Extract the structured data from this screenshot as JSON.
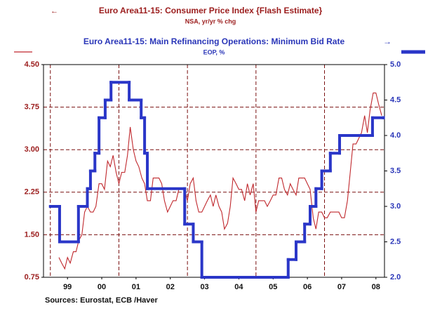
{
  "chart_data": {
    "type": "line",
    "title": "Euro Area11-15: Consumer Price Index {Flash Estimate}",
    "subtitle": "NSA, yr/yr % chg",
    "title2": "Euro Area11-15: Main Refinancing Operations: Minimum Bid Rate",
    "subtitle2": "EOP, %",
    "source": "Sources:  Eurostat, ECB /Haver",
    "xlim": [
      1998.8,
      2008.75
    ],
    "xticks": [
      {
        "value": 1999.5,
        "label": "99"
      },
      {
        "value": 2000.5,
        "label": "00"
      },
      {
        "value": 2001.5,
        "label": "01"
      },
      {
        "value": 2002.5,
        "label": "02"
      },
      {
        "value": 2003.5,
        "label": "03"
      },
      {
        "value": 2004.5,
        "label": "04"
      },
      {
        "value": 2005.5,
        "label": "05"
      },
      {
        "value": 2006.5,
        "label": "06"
      },
      {
        "value": 2007.5,
        "label": "07"
      },
      {
        "value": 2008.5,
        "label": "08"
      }
    ],
    "xgrid": [
      1999,
      2001,
      2003,
      2005,
      2007
    ],
    "ylim": [
      0.75,
      4.5
    ],
    "yticks": [
      {
        "value": 0.75,
        "label": "0.75"
      },
      {
        "value": 1.5,
        "label": "1.50"
      },
      {
        "value": 2.25,
        "label": "2.25"
      },
      {
        "value": 3,
        "label": "3.00"
      },
      {
        "value": 3.75,
        "label": "3.75"
      },
      {
        "value": 4.5,
        "label": "4.50"
      }
    ],
    "y2lim": [
      2,
      5
    ],
    "y2ticks": [
      {
        "value": 2,
        "label": "2.0"
      },
      {
        "value": 2.5,
        "label": "2.5"
      },
      {
        "value": 3,
        "label": "3.0"
      },
      {
        "value": 3.5,
        "label": "3.5"
      },
      {
        "value": 4,
        "label": "4.0"
      },
      {
        "value": 4.5,
        "label": "4.5"
      },
      {
        "value": 5,
        "label": "5.0"
      }
    ],
    "grid": true,
    "series": [
      {
        "name": "Euro Area11-15: Consumer Price Index {Flash Estimate}",
        "color": "#c0282d",
        "axis": "y",
        "x": [
          1999.25,
          1999.33,
          1999.42,
          1999.5,
          1999.58,
          1999.67,
          1999.75,
          1999.83,
          1999.92,
          2000.0,
          2000.08,
          2000.17,
          2000.25,
          2000.33,
          2000.42,
          2000.5,
          2000.58,
          2000.67,
          2000.75,
          2000.83,
          2000.92,
          2001.0,
          2001.08,
          2001.17,
          2001.25,
          2001.33,
          2001.42,
          2001.5,
          2001.58,
          2001.67,
          2001.75,
          2001.83,
          2001.92,
          2002.0,
          2002.08,
          2002.17,
          2002.25,
          2002.33,
          2002.42,
          2002.5,
          2002.58,
          2002.67,
          2002.75,
          2002.83,
          2002.92,
          2003.0,
          2003.08,
          2003.17,
          2003.25,
          2003.33,
          2003.42,
          2003.5,
          2003.58,
          2003.67,
          2003.75,
          2003.83,
          2003.92,
          2004.0,
          2004.08,
          2004.17,
          2004.25,
          2004.33,
          2004.42,
          2004.5,
          2004.58,
          2004.67,
          2004.75,
          2004.83,
          2004.92,
          2005.0,
          2005.08,
          2005.17,
          2005.25,
          2005.33,
          2005.42,
          2005.5,
          2005.58,
          2005.67,
          2005.75,
          2005.83,
          2005.92,
          2006.0,
          2006.08,
          2006.17,
          2006.25,
          2006.33,
          2006.42,
          2006.5,
          2006.58,
          2006.67,
          2006.75,
          2006.83,
          2006.92,
          2007.0,
          2007.08,
          2007.17,
          2007.25,
          2007.33,
          2007.42,
          2007.5,
          2007.58,
          2007.67,
          2007.75,
          2007.83,
          2007.92,
          2008.0,
          2008.08,
          2008.17,
          2008.25,
          2008.33,
          2008.42,
          2008.5,
          2008.58,
          2008.67
        ],
        "values": [
          1.1,
          1.0,
          0.9,
          1.1,
          1.0,
          1.2,
          1.2,
          1.4,
          1.5,
          1.9,
          2.0,
          1.9,
          1.9,
          2.0,
          2.4,
          2.4,
          2.3,
          2.8,
          2.7,
          2.9,
          2.6,
          2.4,
          2.6,
          2.6,
          2.9,
          3.4,
          3.0,
          2.8,
          2.7,
          2.5,
          2.4,
          2.1,
          2.1,
          2.5,
          2.5,
          2.5,
          2.4,
          2.1,
          1.9,
          2.0,
          2.1,
          2.1,
          2.3,
          2.3,
          2.3,
          2.1,
          2.4,
          2.5,
          2.1,
          1.9,
          1.9,
          2.0,
          2.1,
          2.2,
          2.0,
          2.2,
          2.0,
          1.9,
          1.6,
          1.7,
          2.0,
          2.5,
          2.4,
          2.3,
          2.3,
          2.1,
          2.4,
          2.2,
          2.4,
          1.9,
          2.1,
          2.1,
          2.1,
          2.0,
          2.1,
          2.2,
          2.2,
          2.5,
          2.5,
          2.3,
          2.2,
          2.4,
          2.3,
          2.2,
          2.5,
          2.5,
          2.5,
          2.4,
          2.3,
          1.8,
          1.6,
          1.9,
          1.9,
          1.8,
          1.8,
          1.9,
          1.9,
          1.9,
          1.9,
          1.8,
          1.8,
          2.1,
          2.6,
          3.1,
          3.1,
          3.2,
          3.3,
          3.6,
          3.3,
          3.7,
          4.0,
          4.0,
          3.8,
          3.6
        ]
      },
      {
        "name": "Euro Area11-15: Main Refinancing Operations: Minimum Bid Rate",
        "color": "#2a36c8",
        "axis": "y2",
        "step": true,
        "x": [
          1999.0,
          1999.27,
          1999.82,
          2000.08,
          2000.17,
          2000.3,
          2000.42,
          2000.6,
          2000.77,
          2001.3,
          2001.65,
          2001.75,
          2001.83,
          2002.92,
          2003.17,
          2003.42,
          2005.94,
          2006.17,
          2006.42,
          2006.58,
          2006.75,
          2006.92,
          2007.17,
          2007.44,
          2008.4,
          2008.72
        ],
        "values": [
          3.0,
          2.5,
          3.0,
          3.25,
          3.5,
          3.75,
          4.25,
          4.5,
          4.75,
          4.5,
          4.25,
          3.75,
          3.25,
          2.75,
          2.5,
          2.0,
          2.25,
          2.5,
          2.75,
          3.0,
          3.25,
          3.5,
          3.75,
          4.0,
          4.25,
          4.25
        ]
      }
    ]
  }
}
